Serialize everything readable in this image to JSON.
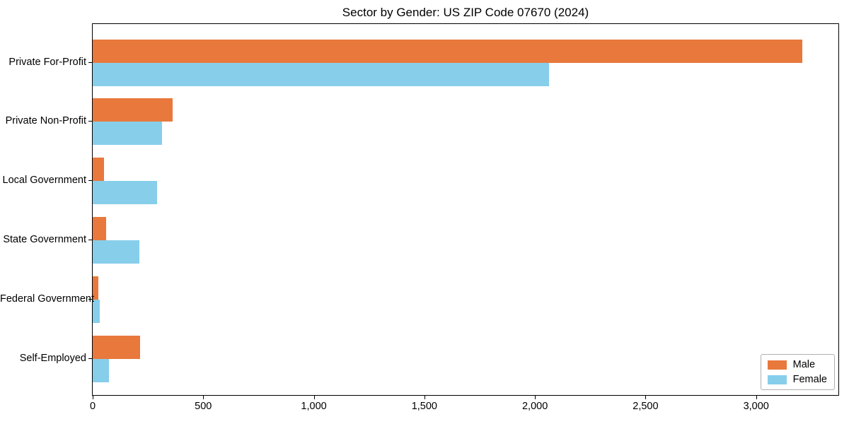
{
  "chart_data": {
    "type": "bar",
    "orientation": "horizontal",
    "title": "Sector by Gender: US ZIP Code 07670 (2024)",
    "categories": [
      "Private For-Profit",
      "Private Non-Profit",
      "Local Government",
      "State Government",
      "Federal Government",
      "Self-Employed"
    ],
    "series": [
      {
        "name": "Male",
        "color": "#E8783C",
        "values": [
          3210,
          360,
          50,
          60,
          25,
          215
        ]
      },
      {
        "name": "Female",
        "color": "#87CEEB",
        "values": [
          2065,
          315,
          290,
          210,
          33,
          75
        ]
      }
    ],
    "xlabel": "",
    "ylabel": "",
    "xlim": [
      0,
      3372
    ],
    "xticks": [
      0,
      500,
      1000,
      1500,
      2000,
      2500,
      3000
    ],
    "xtick_labels": [
      "0",
      "500",
      "1,000",
      "1,500",
      "2,000",
      "2,500",
      "3,000"
    ],
    "grid": false,
    "legend_position": "lower right",
    "legend_entries": [
      "Male",
      "Female"
    ]
  },
  "colors": {
    "background": "#ffffff",
    "spine": "#000000",
    "text": "#000000",
    "legend_border": "#b0b0b0",
    "male": "#E8783C",
    "female": "#87CEEB"
  }
}
